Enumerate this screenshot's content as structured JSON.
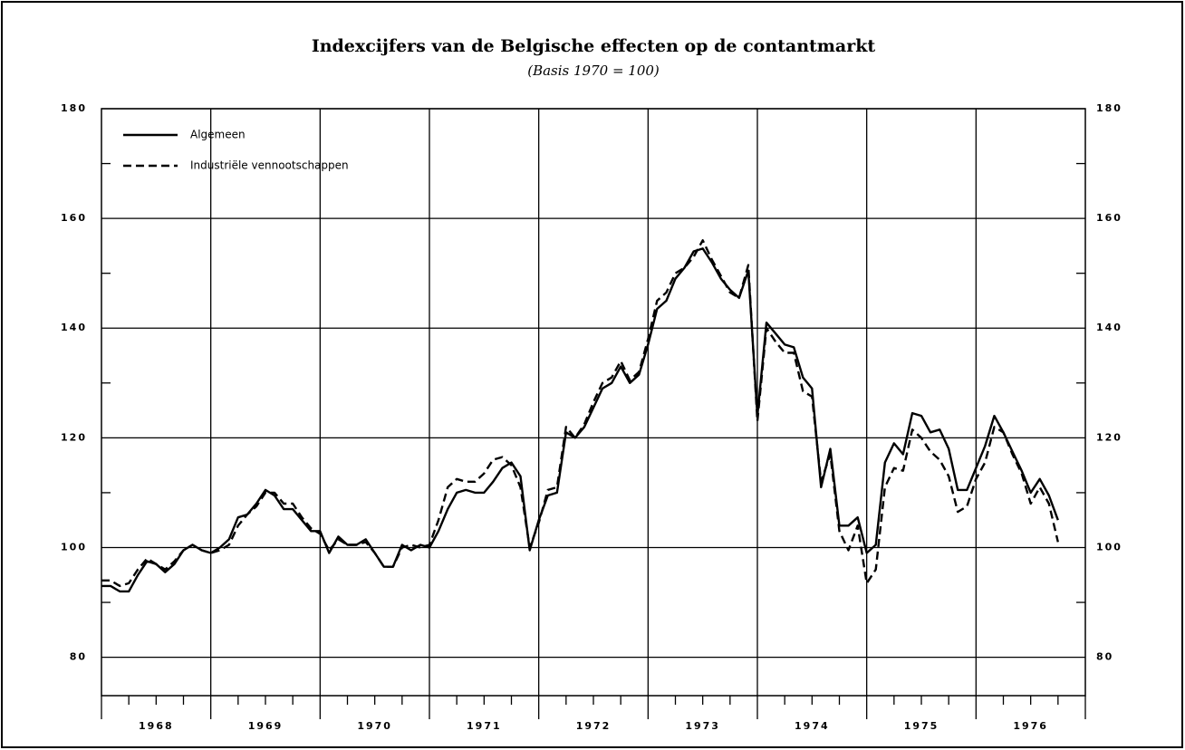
{
  "chart_data": {
    "type": "line",
    "title": "Indexcijfers van de Belgische effecten op de contantmarkt",
    "subtitle": "(Basis 1970 = 100)",
    "xlim": [
      1968,
      1977
    ],
    "ylim": [
      73,
      180
    ],
    "yticks": [
      80,
      100,
      120,
      140,
      160,
      180
    ],
    "yminor_ticks": [
      90,
      110,
      130,
      150,
      170
    ],
    "xticks": [
      {
        "value": 1968.5,
        "label": "1968"
      },
      {
        "value": 1969.5,
        "label": "1969"
      },
      {
        "value": 1970.5,
        "label": "1970"
      },
      {
        "value": 1971.5,
        "label": "1971"
      },
      {
        "value": 1972.5,
        "label": "1972"
      },
      {
        "value": 1973.5,
        "label": "1973"
      },
      {
        "value": 1974.5,
        "label": "1974"
      },
      {
        "value": 1975.5,
        "label": "1975"
      },
      {
        "value": 1976.5,
        "label": "1976"
      }
    ],
    "xgrid": [
      1969,
      1970,
      1971,
      1972,
      1973,
      1974,
      1975,
      1976
    ],
    "xminor_ticks": [
      1968.25,
      1968.5,
      1968.75,
      1969.25,
      1969.5,
      1969.75,
      1970.25,
      1970.5,
      1970.75,
      1971.25,
      1971.5,
      1971.75,
      1972.25,
      1972.5,
      1972.75,
      1973.25,
      1973.5,
      1973.75,
      1974.25,
      1974.5,
      1974.75,
      1975.25,
      1975.5,
      1975.75,
      1976.25,
      1976.5,
      1976.75
    ],
    "grid": true,
    "legend": "top-left",
    "x": [
      1968,
      1968.083,
      1968.167,
      1968.25,
      1968.333,
      1968.417,
      1968.5,
      1968.583,
      1968.667,
      1968.75,
      1968.833,
      1968.917,
      1969,
      1969.083,
      1969.167,
      1969.25,
      1969.333,
      1969.417,
      1969.5,
      1969.583,
      1969.667,
      1969.75,
      1969.833,
      1969.917,
      1970,
      1970.083,
      1970.167,
      1970.25,
      1970.333,
      1970.417,
      1970.5,
      1970.583,
      1970.667,
      1970.75,
      1970.833,
      1970.917,
      1971,
      1971.083,
      1971.167,
      1971.25,
      1971.333,
      1971.417,
      1971.5,
      1971.583,
      1971.667,
      1971.75,
      1971.833,
      1971.917,
      1972,
      1972.083,
      1972.167,
      1972.25,
      1972.333,
      1972.417,
      1972.5,
      1972.583,
      1972.667,
      1972.75,
      1972.833,
      1972.917,
      1973,
      1973.083,
      1973.167,
      1973.25,
      1973.333,
      1973.417,
      1973.5,
      1973.583,
      1973.667,
      1973.75,
      1973.833,
      1973.917,
      1974,
      1974.083,
      1974.167,
      1974.25,
      1974.333,
      1974.417,
      1974.5,
      1974.583,
      1974.667,
      1974.75,
      1974.833,
      1974.917,
      1975,
      1975.083,
      1975.167,
      1975.25,
      1975.333,
      1975.417,
      1975.5,
      1975.583,
      1975.667,
      1975.75,
      1975.833,
      1975.917,
      1976,
      1976.083,
      1976.167,
      1976.25,
      1976.333,
      1976.417,
      1976.5,
      1976.583,
      1976.667,
      1976.75
    ],
    "series": [
      {
        "name": "Algemeen",
        "color": "#000000",
        "dash": "solid",
        "values": [
          93,
          93,
          92,
          92,
          95,
          97.5,
          97,
          95.5,
          97,
          99.5,
          100.5,
          99.5,
          99,
          100,
          101.5,
          105.5,
          106,
          108,
          110.5,
          109.5,
          107,
          107,
          105,
          103,
          103,
          99,
          102,
          100.5,
          100.5,
          101.5,
          99,
          96.5,
          96.5,
          100.5,
          99.5,
          100.5,
          100,
          103,
          107,
          110,
          110.5,
          110,
          110,
          112,
          114.5,
          115.5,
          113,
          99.5,
          105,
          109.5,
          110,
          121,
          120,
          122,
          125.5,
          129,
          130,
          133,
          130,
          131.5,
          137,
          143.5,
          145,
          149,
          151,
          154,
          154.5,
          152,
          149,
          147,
          145.5,
          150.5,
          124,
          141,
          139,
          137,
          136.5,
          131,
          129,
          111,
          118,
          104,
          104,
          105.5,
          99,
          100.5,
          115.5,
          119,
          117,
          124.5,
          124,
          121,
          121.5,
          118,
          110.5,
          110.5,
          114.5,
          118.5,
          124,
          121,
          117.5,
          114,
          110,
          112.5,
          109.5,
          105
        ]
      },
      {
        "name": "Industriële vennootschappen",
        "color": "#000000",
        "dash": "dashed",
        "values": [
          94,
          94,
          93,
          93.5,
          96,
          98,
          97,
          96,
          97.5,
          99.5,
          100.5,
          99.5,
          99,
          99.5,
          100.5,
          104,
          106,
          107.5,
          110,
          110,
          108,
          108,
          105.5,
          103.5,
          102.5,
          99.5,
          101.5,
          100.5,
          100.5,
          101,
          99,
          96.5,
          96.5,
          100,
          100.5,
          100,
          100.5,
          105,
          111,
          112.5,
          112,
          112,
          113.5,
          116,
          116.5,
          115,
          111,
          100,
          104.5,
          110.5,
          111,
          122,
          120,
          122.5,
          126.5,
          130,
          131,
          134,
          130.5,
          132,
          138,
          145,
          146.5,
          150,
          151,
          153,
          156,
          152.5,
          149.5,
          146.5,
          145.5,
          151.5,
          123,
          140,
          137.5,
          135.5,
          135.5,
          128.5,
          127.5,
          112,
          117,
          103,
          99.5,
          104,
          93.5,
          96,
          111,
          114.5,
          114,
          121.5,
          120,
          117.5,
          116,
          113,
          106.5,
          107.5,
          112.5,
          115.5,
          122,
          121,
          117,
          113.5,
          108,
          111,
          108,
          101
        ]
      }
    ]
  }
}
